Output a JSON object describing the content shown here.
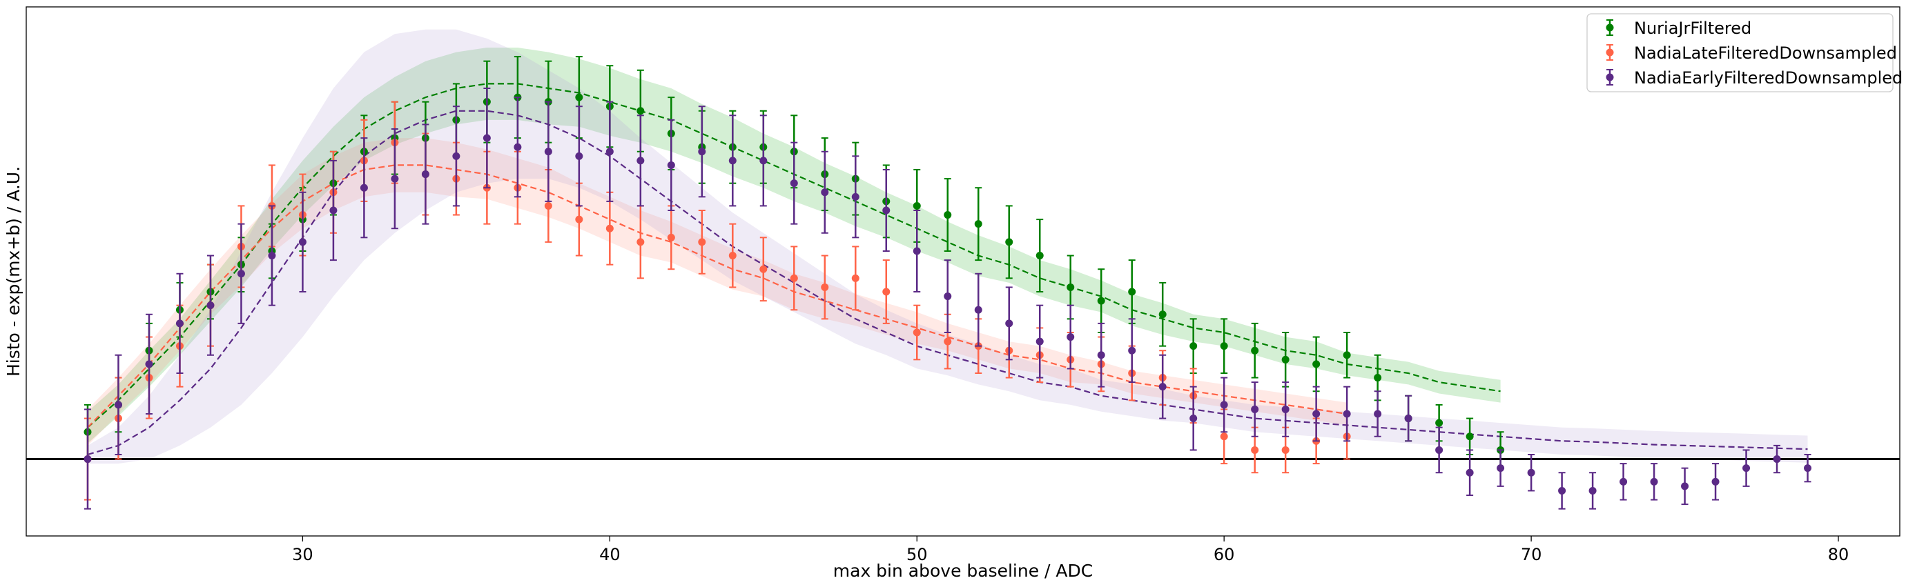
{
  "chart_data": {
    "type": "scatter",
    "title": "",
    "xlabel": "max bin above baseline / ADC",
    "ylabel": "Histo - exp(mx+b) / A.U.",
    "xlim": [
      21,
      82
    ],
    "ylim": [
      -0.17,
      1.0
    ],
    "xticks": [
      30,
      40,
      50,
      60,
      70,
      80
    ],
    "grid": false,
    "legend_position": "top-right",
    "baseline_y": 0,
    "series": [
      {
        "name": "NuriaJrFiltered",
        "color": "#008000",
        "band_color": "#3cb43c",
        "x": [
          23,
          24,
          25,
          26,
          27,
          28,
          29,
          30,
          31,
          32,
          33,
          34,
          35,
          36,
          37,
          38,
          39,
          40,
          41,
          42,
          43,
          44,
          45,
          46,
          47,
          48,
          49,
          50,
          51,
          52,
          53,
          54,
          55,
          56,
          57,
          58,
          59,
          60,
          61,
          62,
          63,
          64,
          65,
          66,
          67,
          68,
          69
        ],
        "y": [
          0.06,
          0.12,
          0.24,
          0.33,
          0.37,
          0.43,
          0.46,
          0.53,
          0.61,
          0.68,
          0.71,
          0.71,
          0.75,
          0.79,
          0.8,
          0.79,
          0.8,
          0.78,
          0.77,
          0.72,
          0.69,
          0.69,
          0.69,
          0.68,
          0.63,
          0.62,
          0.57,
          0.56,
          0.54,
          0.52,
          0.48,
          0.45,
          0.38,
          0.35,
          0.37,
          0.32,
          0.25,
          0.25,
          0.24,
          0.22,
          0.21,
          0.23,
          0.18,
          0.09,
          0.08,
          0.05,
          0.02
        ],
        "err": [
          0.06,
          0.06,
          0.06,
          0.06,
          0.06,
          0.06,
          0.06,
          0.07,
          0.07,
          0.08,
          0.08,
          0.08,
          0.08,
          0.09,
          0.09,
          0.09,
          0.09,
          0.09,
          0.09,
          0.08,
          0.08,
          0.08,
          0.08,
          0.08,
          0.08,
          0.08,
          0.08,
          0.08,
          0.08,
          0.08,
          0.08,
          0.08,
          0.07,
          0.07,
          0.07,
          0.07,
          0.06,
          0.06,
          0.06,
          0.06,
          0.06,
          0.05,
          0.05,
          0.05,
          0.04,
          0.04,
          0.04
        ],
        "fit_x": [
          23,
          24,
          25,
          26,
          27,
          28,
          29,
          30,
          31,
          32,
          33,
          34,
          35,
          36,
          37,
          38,
          39,
          40,
          41,
          42,
          43,
          44,
          45,
          46,
          47,
          48,
          49,
          50,
          51,
          52,
          53,
          54,
          55,
          56,
          57,
          58,
          59,
          60,
          61,
          62,
          63,
          64,
          65,
          66,
          67,
          68,
          69
        ],
        "fit_y": [
          0.07,
          0.13,
          0.2,
          0.27,
          0.35,
          0.43,
          0.52,
          0.6,
          0.67,
          0.73,
          0.77,
          0.8,
          0.82,
          0.83,
          0.83,
          0.82,
          0.81,
          0.79,
          0.77,
          0.75,
          0.72,
          0.69,
          0.66,
          0.63,
          0.6,
          0.57,
          0.54,
          0.51,
          0.48,
          0.45,
          0.43,
          0.4,
          0.38,
          0.36,
          0.33,
          0.31,
          0.29,
          0.28,
          0.26,
          0.24,
          0.23,
          0.21,
          0.2,
          0.19,
          0.17,
          0.16,
          0.15
        ],
        "band_halfwidth": [
          0.035,
          0.035,
          0.04,
          0.04,
          0.045,
          0.05,
          0.055,
          0.06,
          0.065,
          0.07,
          0.075,
          0.08,
          0.08,
          0.08,
          0.08,
          0.08,
          0.075,
          0.075,
          0.07,
          0.07,
          0.065,
          0.065,
          0.06,
          0.06,
          0.055,
          0.055,
          0.05,
          0.05,
          0.045,
          0.045,
          0.04,
          0.04,
          0.04,
          0.035,
          0.035,
          0.035,
          0.03,
          0.03,
          0.03,
          0.03,
          0.03,
          0.025,
          0.025,
          0.025,
          0.025,
          0.025,
          0.025
        ]
      },
      {
        "name": "NadiaLateFilteredDownsampled",
        "color": "#ff6347",
        "band_color": "#ff9c8a",
        "x": [
          23,
          24,
          25,
          26,
          27,
          28,
          29,
          30,
          31,
          32,
          33,
          34,
          35,
          36,
          37,
          38,
          39,
          40,
          41,
          42,
          43,
          44,
          45,
          46,
          47,
          48,
          49,
          50,
          51,
          52,
          53,
          54,
          55,
          56,
          57,
          58,
          59,
          60,
          61,
          62,
          63,
          64
        ],
        "y": [
          0.0,
          0.09,
          0.18,
          0.25,
          0.34,
          0.47,
          0.56,
          0.54,
          0.59,
          0.66,
          0.7,
          0.63,
          0.62,
          0.6,
          0.6,
          0.56,
          0.53,
          0.51,
          0.48,
          0.49,
          0.48,
          0.45,
          0.42,
          0.4,
          0.38,
          0.4,
          0.37,
          0.28,
          0.26,
          0.25,
          0.24,
          0.23,
          0.22,
          0.21,
          0.19,
          0.18,
          0.14,
          0.05,
          0.02,
          0.02,
          0.04,
          0.05
        ],
        "err": [
          0.09,
          0.09,
          0.09,
          0.09,
          0.09,
          0.09,
          0.09,
          0.09,
          0.09,
          0.09,
          0.09,
          0.09,
          0.08,
          0.08,
          0.08,
          0.08,
          0.08,
          0.08,
          0.08,
          0.07,
          0.07,
          0.07,
          0.07,
          0.07,
          0.07,
          0.07,
          0.07,
          0.06,
          0.06,
          0.06,
          0.06,
          0.06,
          0.06,
          0.06,
          0.06,
          0.06,
          0.06,
          0.06,
          0.05,
          0.05,
          0.05,
          0.05
        ],
        "fit_x": [
          23,
          24,
          25,
          26,
          27,
          28,
          29,
          30,
          31,
          32,
          33,
          34,
          35,
          36,
          37,
          38,
          39,
          40,
          41,
          42,
          43,
          44,
          45,
          46,
          47,
          48,
          49,
          50,
          51,
          52,
          53,
          54,
          55,
          56,
          57,
          58,
          59,
          60,
          61,
          62,
          63,
          64
        ],
        "fit_y": [
          0.07,
          0.14,
          0.21,
          0.29,
          0.37,
          0.44,
          0.51,
          0.57,
          0.61,
          0.64,
          0.65,
          0.65,
          0.64,
          0.63,
          0.61,
          0.59,
          0.56,
          0.53,
          0.5,
          0.48,
          0.45,
          0.42,
          0.4,
          0.37,
          0.35,
          0.33,
          0.31,
          0.29,
          0.27,
          0.25,
          0.23,
          0.22,
          0.2,
          0.19,
          0.17,
          0.16,
          0.15,
          0.14,
          0.13,
          0.12,
          0.11,
          0.1
        ],
        "band_halfwidth": [
          0.04,
          0.04,
          0.045,
          0.05,
          0.05,
          0.055,
          0.055,
          0.06,
          0.06,
          0.06,
          0.06,
          0.06,
          0.06,
          0.055,
          0.055,
          0.055,
          0.05,
          0.05,
          0.05,
          0.045,
          0.045,
          0.045,
          0.04,
          0.04,
          0.04,
          0.035,
          0.035,
          0.035,
          0.03,
          0.03,
          0.03,
          0.03,
          0.03,
          0.025,
          0.025,
          0.025,
          0.025,
          0.025,
          0.025,
          0.025,
          0.025,
          0.025
        ]
      },
      {
        "name": "NadiaEarlyFilteredDownsampled",
        "color": "#5b2a86",
        "band_color": "#b8a6d8",
        "x": [
          23,
          24,
          25,
          26,
          27,
          28,
          29,
          30,
          31,
          32,
          33,
          34,
          35,
          36,
          37,
          38,
          39,
          40,
          41,
          42,
          43,
          44,
          45,
          46,
          47,
          48,
          49,
          50,
          51,
          52,
          53,
          54,
          55,
          56,
          57,
          58,
          59,
          60,
          61,
          62,
          63,
          64,
          65,
          66,
          67,
          68,
          69,
          70,
          71,
          72,
          73,
          74,
          75,
          76,
          77,
          78,
          79
        ],
        "y": [
          0.0,
          0.12,
          0.21,
          0.3,
          0.34,
          0.41,
          0.45,
          0.48,
          0.55,
          0.6,
          0.62,
          0.63,
          0.67,
          0.71,
          0.69,
          0.68,
          0.67,
          0.68,
          0.66,
          0.65,
          0.68,
          0.66,
          0.66,
          0.61,
          0.59,
          0.58,
          0.55,
          0.46,
          0.36,
          0.33,
          0.3,
          0.26,
          0.27,
          0.23,
          0.24,
          0.16,
          0.09,
          0.12,
          0.11,
          0.11,
          0.1,
          0.1,
          0.1,
          0.09,
          0.02,
          -0.03,
          -0.02,
          -0.03,
          -0.07,
          -0.07,
          -0.05,
          -0.05,
          -0.06,
          -0.05,
          -0.02,
          0.0,
          -0.02
        ],
        "err": [
          0.11,
          0.11,
          0.11,
          0.11,
          0.11,
          0.11,
          0.11,
          0.11,
          0.11,
          0.11,
          0.11,
          0.11,
          0.11,
          0.11,
          0.11,
          0.11,
          0.11,
          0.11,
          0.1,
          0.1,
          0.1,
          0.1,
          0.1,
          0.09,
          0.09,
          0.09,
          0.09,
          0.09,
          0.08,
          0.08,
          0.08,
          0.08,
          0.07,
          0.07,
          0.07,
          0.07,
          0.07,
          0.06,
          0.06,
          0.06,
          0.06,
          0.06,
          0.05,
          0.05,
          0.05,
          0.05,
          0.04,
          0.04,
          0.04,
          0.04,
          0.04,
          0.04,
          0.04,
          0.04,
          0.04,
          0.03,
          0.03
        ],
        "fit_x": [
          23,
          24,
          25,
          26,
          27,
          28,
          29,
          30,
          31,
          32,
          33,
          34,
          35,
          36,
          37,
          38,
          39,
          40,
          41,
          42,
          43,
          44,
          45,
          46,
          47,
          48,
          49,
          50,
          51,
          52,
          53,
          54,
          55,
          56,
          57,
          58,
          59,
          60,
          61,
          62,
          63,
          64,
          65,
          66,
          67,
          68,
          69,
          70,
          71,
          72,
          73,
          74,
          75,
          76,
          77,
          78,
          79
        ],
        "fit_y": [
          0.01,
          0.03,
          0.07,
          0.13,
          0.2,
          0.29,
          0.39,
          0.49,
          0.59,
          0.67,
          0.72,
          0.75,
          0.77,
          0.77,
          0.76,
          0.74,
          0.71,
          0.67,
          0.62,
          0.57,
          0.52,
          0.47,
          0.43,
          0.39,
          0.35,
          0.31,
          0.28,
          0.25,
          0.23,
          0.21,
          0.19,
          0.17,
          0.16,
          0.14,
          0.13,
          0.12,
          0.11,
          0.1,
          0.09,
          0.085,
          0.08,
          0.075,
          0.07,
          0.065,
          0.06,
          0.055,
          0.05,
          0.045,
          0.04,
          0.038,
          0.035,
          0.032,
          0.03,
          0.028,
          0.026,
          0.024,
          0.022
        ],
        "band_halfwidth": [
          0.02,
          0.04,
          0.07,
          0.1,
          0.13,
          0.17,
          0.2,
          0.22,
          0.23,
          0.23,
          0.22,
          0.2,
          0.18,
          0.16,
          0.14,
          0.12,
          0.11,
          0.1,
          0.09,
          0.085,
          0.08,
          0.075,
          0.07,
          0.065,
          0.06,
          0.055,
          0.05,
          0.05,
          0.045,
          0.045,
          0.04,
          0.04,
          0.04,
          0.035,
          0.035,
          0.035,
          0.03,
          0.03,
          0.03,
          0.03,
          0.03,
          0.03,
          0.03,
          0.03,
          0.03,
          0.03,
          0.03,
          0.03,
          0.03,
          0.03,
          0.03,
          0.03,
          0.03,
          0.03,
          0.03,
          0.03,
          0.03
        ]
      }
    ]
  }
}
